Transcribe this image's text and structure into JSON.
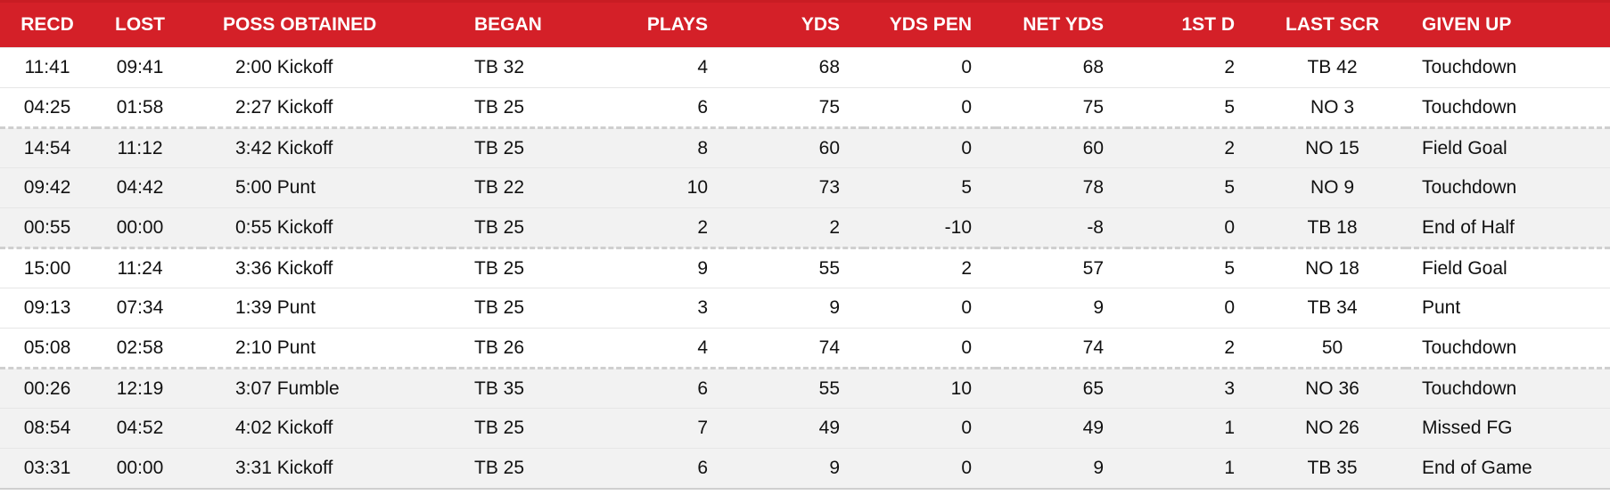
{
  "headers": {
    "recd": "RECD",
    "lost": "LOST",
    "poss_obtained": "POSS OBTAINED",
    "began": "BEGAN",
    "plays": "PLAYS",
    "yds": "YDS",
    "yds_pen": "YDS PEN",
    "net_yds": "NET YDS",
    "first_d": "1ST D",
    "last_scr": "LAST SCR",
    "given_up": "GIVEN UP"
  },
  "rows": [
    {
      "recd": "11:41",
      "lost": "09:41",
      "poss": "2:00 Kickoff",
      "began": "TB 32",
      "plays": "4",
      "yds": "68",
      "yds_pen": "0",
      "net_yds": "68",
      "first_d": "2",
      "last_scr": "TB 42",
      "given_up": "Touchdown"
    },
    {
      "recd": "04:25",
      "lost": "01:58",
      "poss": "2:27 Kickoff",
      "began": "TB 25",
      "plays": "6",
      "yds": "75",
      "yds_pen": "0",
      "net_yds": "75",
      "first_d": "5",
      "last_scr": "NO 3",
      "given_up": "Touchdown"
    },
    {
      "recd": "14:54",
      "lost": "11:12",
      "poss": "3:42 Kickoff",
      "began": "TB 25",
      "plays": "8",
      "yds": "60",
      "yds_pen": "0",
      "net_yds": "60",
      "first_d": "2",
      "last_scr": "NO 15",
      "given_up": "Field Goal"
    },
    {
      "recd": "09:42",
      "lost": "04:42",
      "poss": "5:00 Punt",
      "began": "TB 22",
      "plays": "10",
      "yds": "73",
      "yds_pen": "5",
      "net_yds": "78",
      "first_d": "5",
      "last_scr": "NO 9",
      "given_up": "Touchdown"
    },
    {
      "recd": "00:55",
      "lost": "00:00",
      "poss": "0:55 Kickoff",
      "began": "TB 25",
      "plays": "2",
      "yds": "2",
      "yds_pen": "-10",
      "net_yds": "-8",
      "first_d": "0",
      "last_scr": "TB 18",
      "given_up": "End of Half"
    },
    {
      "recd": "15:00",
      "lost": "11:24",
      "poss": "3:36 Kickoff",
      "began": "TB 25",
      "plays": "9",
      "yds": "55",
      "yds_pen": "2",
      "net_yds": "57",
      "first_d": "5",
      "last_scr": "NO 18",
      "given_up": "Field Goal"
    },
    {
      "recd": "09:13",
      "lost": "07:34",
      "poss": "1:39 Punt",
      "began": "TB 25",
      "plays": "3",
      "yds": "9",
      "yds_pen": "0",
      "net_yds": "9",
      "first_d": "0",
      "last_scr": "TB 34",
      "given_up": "Punt"
    },
    {
      "recd": "05:08",
      "lost": "02:58",
      "poss": "2:10 Punt",
      "began": "TB 26",
      "plays": "4",
      "yds": "74",
      "yds_pen": "0",
      "net_yds": "74",
      "first_d": "2",
      "last_scr": "50",
      "given_up": "Touchdown"
    },
    {
      "recd": "00:26",
      "lost": "12:19",
      "poss": "3:07 Fumble",
      "began": "TB 35",
      "plays": "6",
      "yds": "55",
      "yds_pen": "10",
      "net_yds": "65",
      "first_d": "3",
      "last_scr": "NO 36",
      "given_up": "Touchdown"
    },
    {
      "recd": "08:54",
      "lost": "04:52",
      "poss": "4:02 Kickoff",
      "began": "TB 25",
      "plays": "7",
      "yds": "49",
      "yds_pen": "0",
      "net_yds": "49",
      "first_d": "1",
      "last_scr": "NO 26",
      "given_up": "Missed FG"
    },
    {
      "recd": "03:31",
      "lost": "00:00",
      "poss": "3:31 Kickoff",
      "began": "TB 25",
      "plays": "6",
      "yds": "9",
      "yds_pen": "0",
      "net_yds": "9",
      "first_d": "1",
      "last_scr": "TB 35",
      "given_up": "End of Game"
    }
  ],
  "colors": {
    "header_bg": "#d42028",
    "header_text": "#ffffff",
    "row_alt_bg": "#f2f2f2",
    "divider": "#cfcfcf"
  }
}
